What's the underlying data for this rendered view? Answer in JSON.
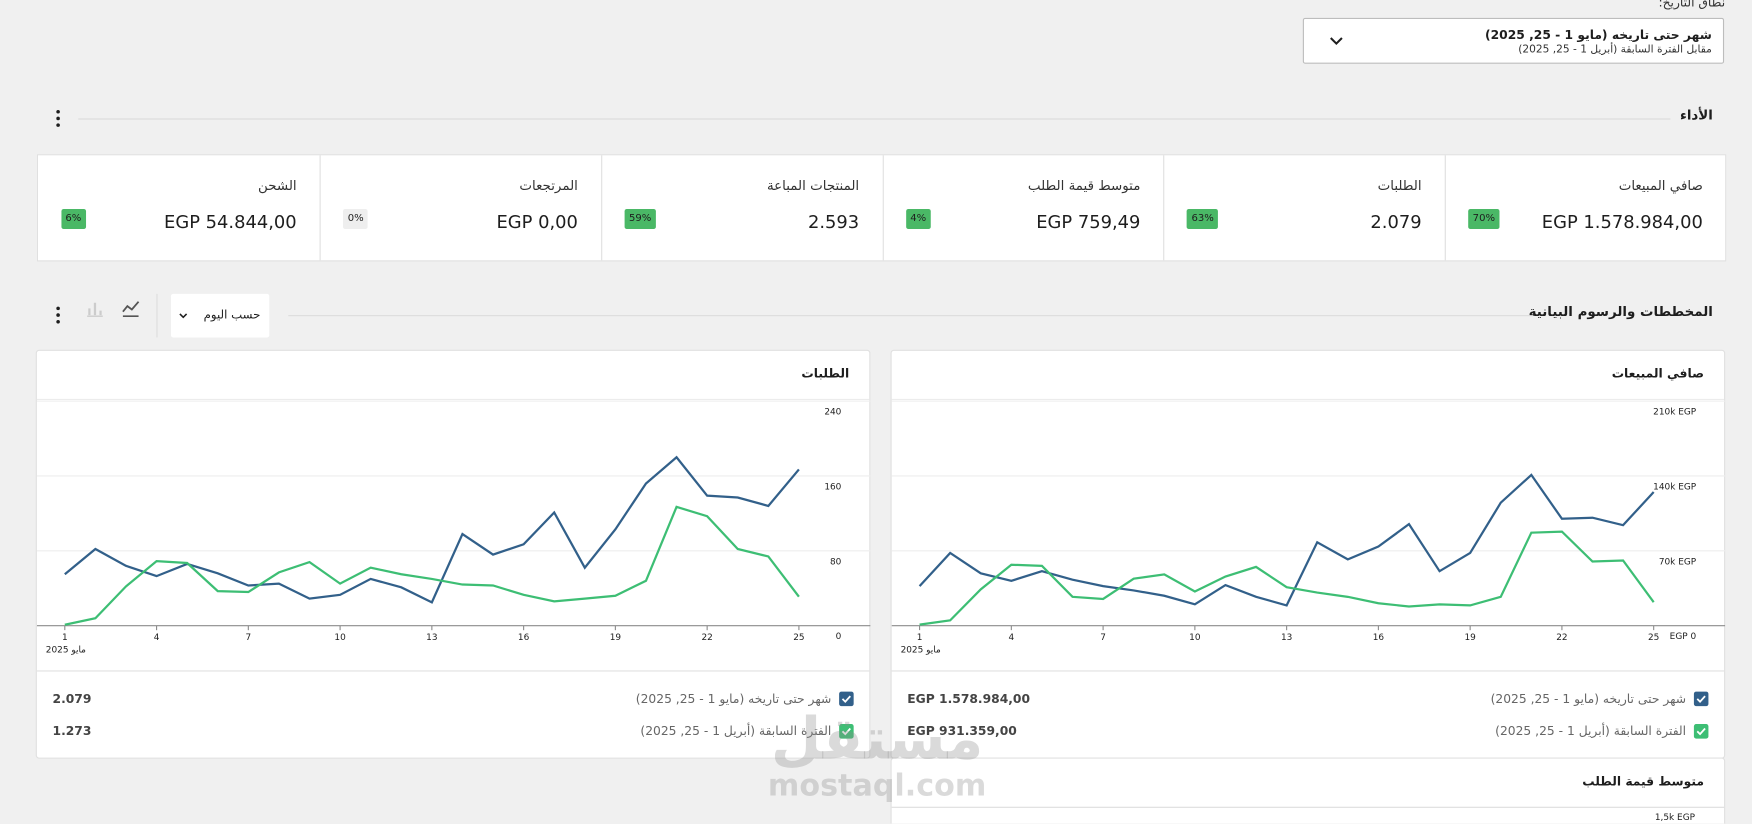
{
  "date_range": {
    "label": "نطاق التاريخ:",
    "current": "شهر حتى تاريخه (مايو 1 - 25, 2025)",
    "compare": "مقابل الفترة السابقة (أبريل 1 - 25, 2025)"
  },
  "performance": {
    "title": "الأداء",
    "kpis": [
      {
        "label": "صافي المبيعات",
        "value": "EGP 1.578.984,00",
        "delta": "70%",
        "delta_color": "#4ab866"
      },
      {
        "label": "الطلبات",
        "value": "2.079",
        "delta": "63%",
        "delta_color": "#4ab866"
      },
      {
        "label": "متوسط قيمة الطلب",
        "value": "EGP 759,49",
        "delta": "4%",
        "delta_color": "#4ab866"
      },
      {
        "label": "المنتجات المباعة",
        "value": "2.593",
        "delta": "59%",
        "delta_color": "#4ab866"
      },
      {
        "label": "المرتجعات",
        "value": "EGP 0,00",
        "delta": "0%",
        "delta_color": "#eeeeee"
      },
      {
        "label": "الشحن",
        "value": "EGP 54.844,00",
        "delta": "6%",
        "delta_color": "#4ab866"
      }
    ]
  },
  "charts_section": {
    "title": "المخططات والرسوم البيانية",
    "interval": "حسب اليوم"
  },
  "chart_data": [
    {
      "type": "line",
      "title": "صافي المبيعات",
      "x": [
        1,
        2,
        3,
        4,
        5,
        6,
        7,
        8,
        9,
        10,
        11,
        12,
        13,
        14,
        15,
        16,
        17,
        18,
        19,
        20,
        21,
        22,
        23,
        24,
        25
      ],
      "xlim": [
        1,
        25
      ],
      "xticks": [
        1,
        4,
        7,
        10,
        13,
        16,
        19,
        22,
        25
      ],
      "x_sublabel": "مايو 2025",
      "ylim": [
        0,
        210000
      ],
      "yticks": [
        {
          "value": 0,
          "label": "EGP 0"
        },
        {
          "value": 70000,
          "label": "70k EGP"
        },
        {
          "value": 140000,
          "label": "140k EGP"
        },
        {
          "value": 210000,
          "label": "210k EGP"
        }
      ],
      "grid": true,
      "series": [
        {
          "name": "شهر حتى تاريخه (مايو 1 - 25, 2025)",
          "color": "#32608a",
          "total_label": "EGP 1.578.984,00",
          "values": [
            37000,
            68000,
            49000,
            42000,
            51000,
            43000,
            37000,
            33000,
            28000,
            20000,
            38000,
            27000,
            19000,
            78000,
            62000,
            74000,
            95000,
            51000,
            68000,
            115000,
            141000,
            100000,
            101000,
            94000,
            125000
          ]
        },
        {
          "name": "الفترة السابقة (أبريل 1 - 25, 2025)",
          "color": "#3dbe74",
          "total_label": "EGP 931.359,00",
          "values": [
            1000,
            5000,
            34000,
            57000,
            56000,
            27000,
            25000,
            44000,
            48000,
            32000,
            46000,
            55000,
            36000,
            31000,
            27000,
            21000,
            18000,
            20000,
            19000,
            27000,
            87000,
            88000,
            60000,
            61000,
            22000
          ]
        }
      ]
    },
    {
      "type": "line",
      "title": "الطلبات",
      "x": [
        1,
        2,
        3,
        4,
        5,
        6,
        7,
        8,
        9,
        10,
        11,
        12,
        13,
        14,
        15,
        16,
        17,
        18,
        19,
        20,
        21,
        22,
        23,
        24,
        25
      ],
      "xlim": [
        1,
        25
      ],
      "xticks": [
        1,
        4,
        7,
        10,
        13,
        16,
        19,
        22,
        25
      ],
      "x_sublabel": "مايو 2025",
      "ylim": [
        0,
        240
      ],
      "yticks": [
        0,
        80,
        160,
        240
      ],
      "grid": true,
      "series": [
        {
          "name": "شهر حتى تاريخه (مايو 1 - 25, 2025)",
          "color": "#32608a",
          "total_label": "2.079",
          "values": [
            55,
            82,
            64,
            53,
            66,
            56,
            43,
            45,
            29,
            33,
            50,
            41,
            25,
            98,
            76,
            87,
            121,
            62,
            103,
            152,
            180,
            139,
            137,
            128,
            167
          ]
        },
        {
          "name": "الفترة السابقة (أبريل 1 - 25, 2025)",
          "color": "#3dbe74",
          "total_label": "1.273",
          "values": [
            1,
            8,
            42,
            69,
            67,
            37,
            36,
            57,
            68,
            45,
            62,
            55,
            50,
            44,
            43,
            33,
            26,
            29,
            32,
            48,
            127,
            117,
            82,
            74,
            31
          ]
        }
      ]
    }
  ],
  "partial_chart": {
    "title": "متوسط قيمة الطلب",
    "visible_tick": "1,5k EGP"
  },
  "watermark": {
    "arabic": "مستقل",
    "latin": "mostaql.com"
  }
}
